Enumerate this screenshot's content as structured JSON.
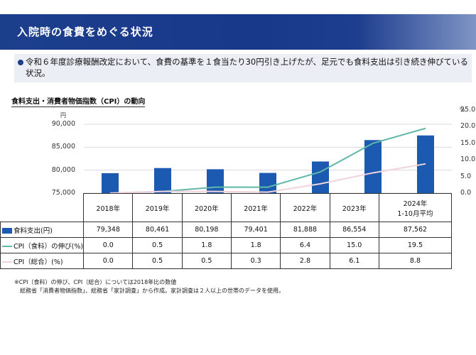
{
  "header": {
    "title": "入院時の食費をめぐる状況"
  },
  "note": {
    "text": "令和６年度診療報酬改定において、食費の基準を１食当たり30円引き上げたが、足元でも食料支出は引き続き伸びている状況。"
  },
  "chart_title": "食料支出・消費者物価指数（CPI）の動向",
  "colors": {
    "header": "#1c3f8c",
    "bar": "#1b5ab0",
    "cpi_food": "#5fb8a8",
    "cpi_total": "#f2d3dc"
  },
  "chart_data": {
    "type": "bar",
    "title": "食料支出・消費者物価指数（CPI）の動向",
    "categories": [
      "2018年",
      "2019年",
      "2020年",
      "2021年",
      "2022年",
      "2023年",
      "2024年\n1-10月平均"
    ],
    "left_axis": {
      "unit": "円",
      "ylim": [
        75000,
        90000
      ],
      "ticks": [
        "90,000",
        "85,000",
        "80,000",
        "75,000"
      ]
    },
    "right_axis": {
      "unit": "%",
      "ylim": [
        0,
        25
      ],
      "ticks": [
        "25.0",
        "20.0",
        "15.0",
        "10.0",
        "5.0",
        "0.0"
      ]
    },
    "grid": true,
    "series": [
      {
        "name": "食料支出(円)",
        "type": "bar",
        "axis": "left",
        "values": [
          79348,
          80461,
          80198,
          79401,
          81888,
          86554,
          87562
        ],
        "labels": [
          "79,348",
          "80,461",
          "80,198",
          "79,401",
          "81,888",
          "86,554",
          "87,562"
        ]
      },
      {
        "name": "CPI（食料）の伸び(%)",
        "type": "line",
        "axis": "right",
        "values": [
          0.0,
          0.5,
          1.8,
          1.8,
          6.4,
          15.0,
          19.5
        ],
        "labels": [
          "0.0",
          "0.5",
          "1.8",
          "1.8",
          "6.4",
          "15.0",
          "19.5"
        ]
      },
      {
        "name": "CPI（総合）(%)",
        "type": "line",
        "axis": "right",
        "values": [
          0.0,
          0.5,
          0.5,
          0.3,
          2.8,
          6.1,
          8.8
        ],
        "labels": [
          "0.0",
          "0.5",
          "0.5",
          "0.3",
          "2.8",
          "6.1",
          "8.8"
        ]
      }
    ]
  },
  "footnote": {
    "line1": "※CPI（食料）の伸び、CPI（総合）については2018年比の数値",
    "line2": "総務省「消費者物価指数」、総務省「家計調査」から作成。家計調査は２人以上の世帯のデータを使用。"
  }
}
